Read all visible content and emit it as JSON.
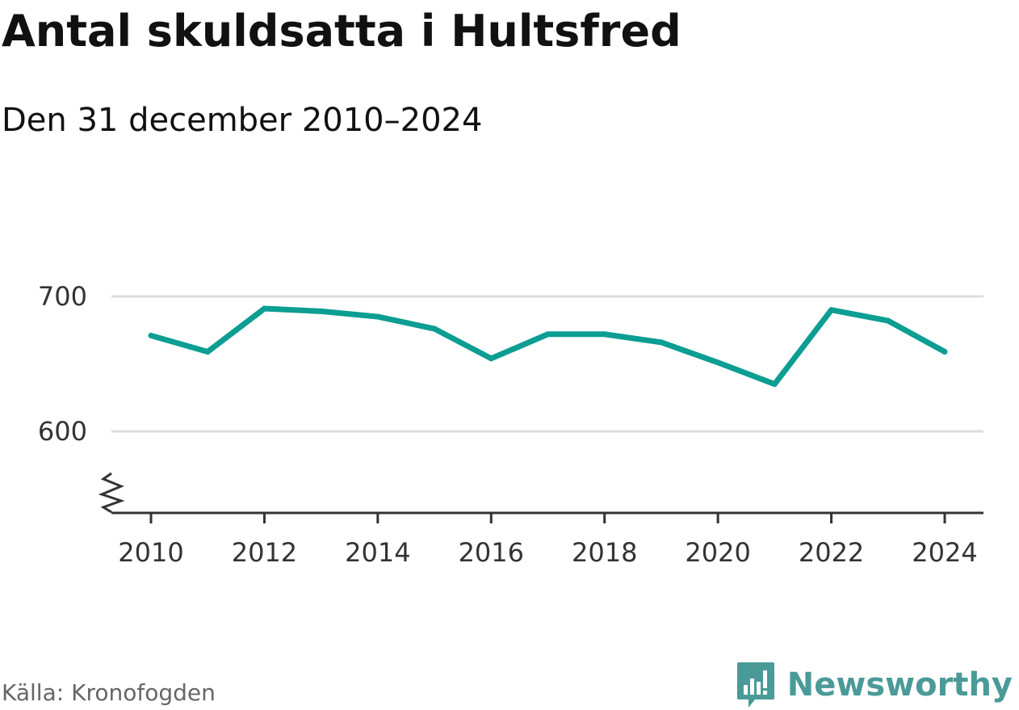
{
  "header": {
    "title": "Antal skuldsatta i Hultsfred",
    "subtitle": "Den 31 december 2010–2024"
  },
  "footer": {
    "source": "Källa: Kronofogden",
    "brand": "Newsworthy"
  },
  "colors": {
    "line": "#0c9e93",
    "grid": "#dddddd",
    "axis": "#333333",
    "brand": "#4a9a98"
  },
  "icons": {
    "brand_logo": "bar-chart-speech-bubble-icon",
    "axis_break": "zigzag-axis-break-icon"
  },
  "chart_data": {
    "type": "line",
    "x": [
      2010,
      2011,
      2012,
      2013,
      2014,
      2015,
      2016,
      2017,
      2018,
      2019,
      2020,
      2021,
      2022,
      2023,
      2024
    ],
    "series": [
      {
        "values": [
          671,
          659,
          691,
          689,
          685,
          676,
          654,
          672,
          672,
          666,
          651,
          635,
          690,
          682,
          659
        ]
      }
    ],
    "x_ticks": [
      "2010",
      "2012",
      "2014",
      "2016",
      "2018",
      "2020",
      "2022",
      "2024"
    ],
    "y_ticks": [
      "600",
      "700"
    ],
    "xlim": [
      2010,
      2024
    ],
    "ylim": [
      540,
      700
    ],
    "y_axis_break": true,
    "grid": "horizontal",
    "legend": "none",
    "xlabel": "",
    "ylabel": ""
  }
}
